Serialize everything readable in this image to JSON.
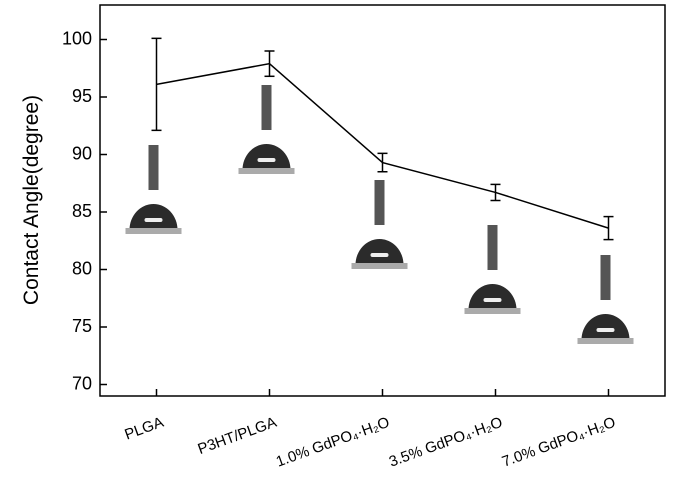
{
  "chart_data": {
    "type": "line",
    "y_label": "Contact Angle(degree)",
    "categories": [
      "PLGA",
      "P3HT/PLGA",
      "1.0% GdPO₄·H₂O",
      "3.5% GdPO₄·H₂O",
      "7.0% GdPO₄·H₂O"
    ],
    "values": [
      96.1,
      97.9,
      89.3,
      86.7,
      83.6
    ],
    "errors": [
      4.0,
      1.1,
      0.8,
      0.7,
      1.0
    ],
    "color": "#000000",
    "ylim": [
      69,
      103
    ],
    "yticks": [
      70,
      75,
      80,
      85,
      90,
      95,
      100
    ]
  }
}
